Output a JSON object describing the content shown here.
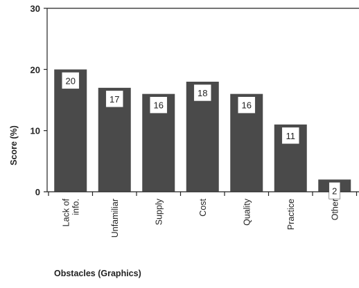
{
  "chart_data": {
    "type": "bar",
    "categories": [
      "Lack of info.",
      "Unfamiliar",
      "Supply",
      "Cost",
      "Quality",
      "Practice",
      "Other"
    ],
    "category_lines": [
      [
        "Lack of",
        "info."
      ],
      [
        "Unfamiliar"
      ],
      [
        "Supply"
      ],
      [
        "Cost"
      ],
      [
        "Quality"
      ],
      [
        "Practice"
      ],
      [
        "Other"
      ]
    ],
    "values": [
      20,
      17,
      16,
      18,
      16,
      11,
      2
    ],
    "data_labels": [
      "20",
      "17",
      "16",
      "18",
      "16",
      "11",
      "2"
    ],
    "xlabel": "Obstacles (Graphics)",
    "ylabel": "Score (%)",
    "ylim": [
      0,
      30
    ],
    "yticks": [
      0,
      10,
      20,
      30
    ],
    "ytick_labels": [
      "0",
      "10",
      "20",
      "30"
    ],
    "grid": false,
    "colors": {
      "bar": "#4a4a4a",
      "axis": "#222222",
      "label_box": "#ffffff"
    }
  }
}
